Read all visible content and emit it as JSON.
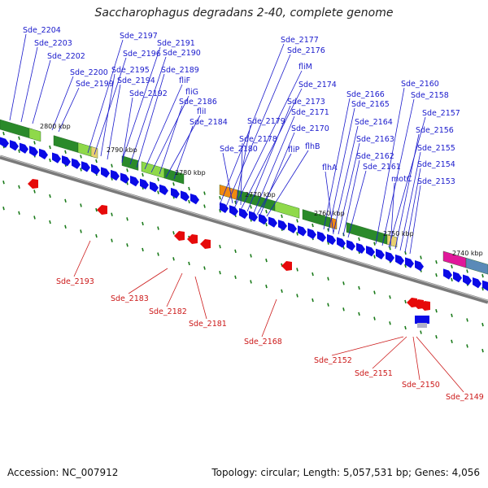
{
  "title": "Saccharophagus degradans 2-40, complete genome",
  "footer": {
    "accession": "Accession: NC_007912",
    "topology": "Topology: circular; Length: 5,057,531 bp; Genes: 4,056"
  },
  "colors": {
    "forward_gene": "#0a0ae6",
    "reverse_gene": "#e60a0a",
    "forward_label": "#1a1acc",
    "reverse_label": "#cc1a1a",
    "backbone": "#7a7a7a",
    "cog_green_dark": "#2a8a2a",
    "cog_green_light": "#8fd94a",
    "cog_orange": "#f08a10",
    "cog_magenta": "#e0189a",
    "cog_steel": "#5a8ab8"
  },
  "kbp_markers": [
    "2800 kbp",
    "2790 kbp",
    "2780 kbp",
    "2770 kbp",
    "2760 kbp",
    "2750 kbp",
    "2740 kbp"
  ],
  "forward_labels": [
    "Sde_2204",
    "Sde_2203",
    "Sde_2202",
    "Sde_2200",
    "Sde_2199",
    "Sde_2197",
    "Sde_2196",
    "Sde_2195",
    "Sde_2194",
    "Sde_2192",
    "Sde_2191",
    "Sde_2190",
    "Sde_2189",
    "fliF",
    "fliG",
    "Sde_2186",
    "fliI",
    "Sde_2184",
    "Sde_2177",
    "Sde_2176",
    "fliM",
    "Sde_2174",
    "Sde_2173",
    "Sde_2171",
    "Sde_2170",
    "flhB",
    "fliP",
    "Sde_2179",
    "Sde_2178",
    "Sde_2180",
    "Sde_2166",
    "Sde_2165",
    "Sde_2164",
    "Sde_2163",
    "Sde_2162",
    "Sde_2161",
    "flhA",
    "Sde_2160",
    "Sde_2158",
    "Sde_2157",
    "Sde_2156",
    "Sde_2155",
    "Sde_2154",
    "Sde_2153",
    "motC"
  ],
  "reverse_labels": [
    "Sde_2193",
    "Sde_2183",
    "Sde_2182",
    "Sde_2181",
    "Sde_2168",
    "Sde_2152",
    "Sde_2151",
    "Sde_2150",
    "Sde_2149"
  ]
}
